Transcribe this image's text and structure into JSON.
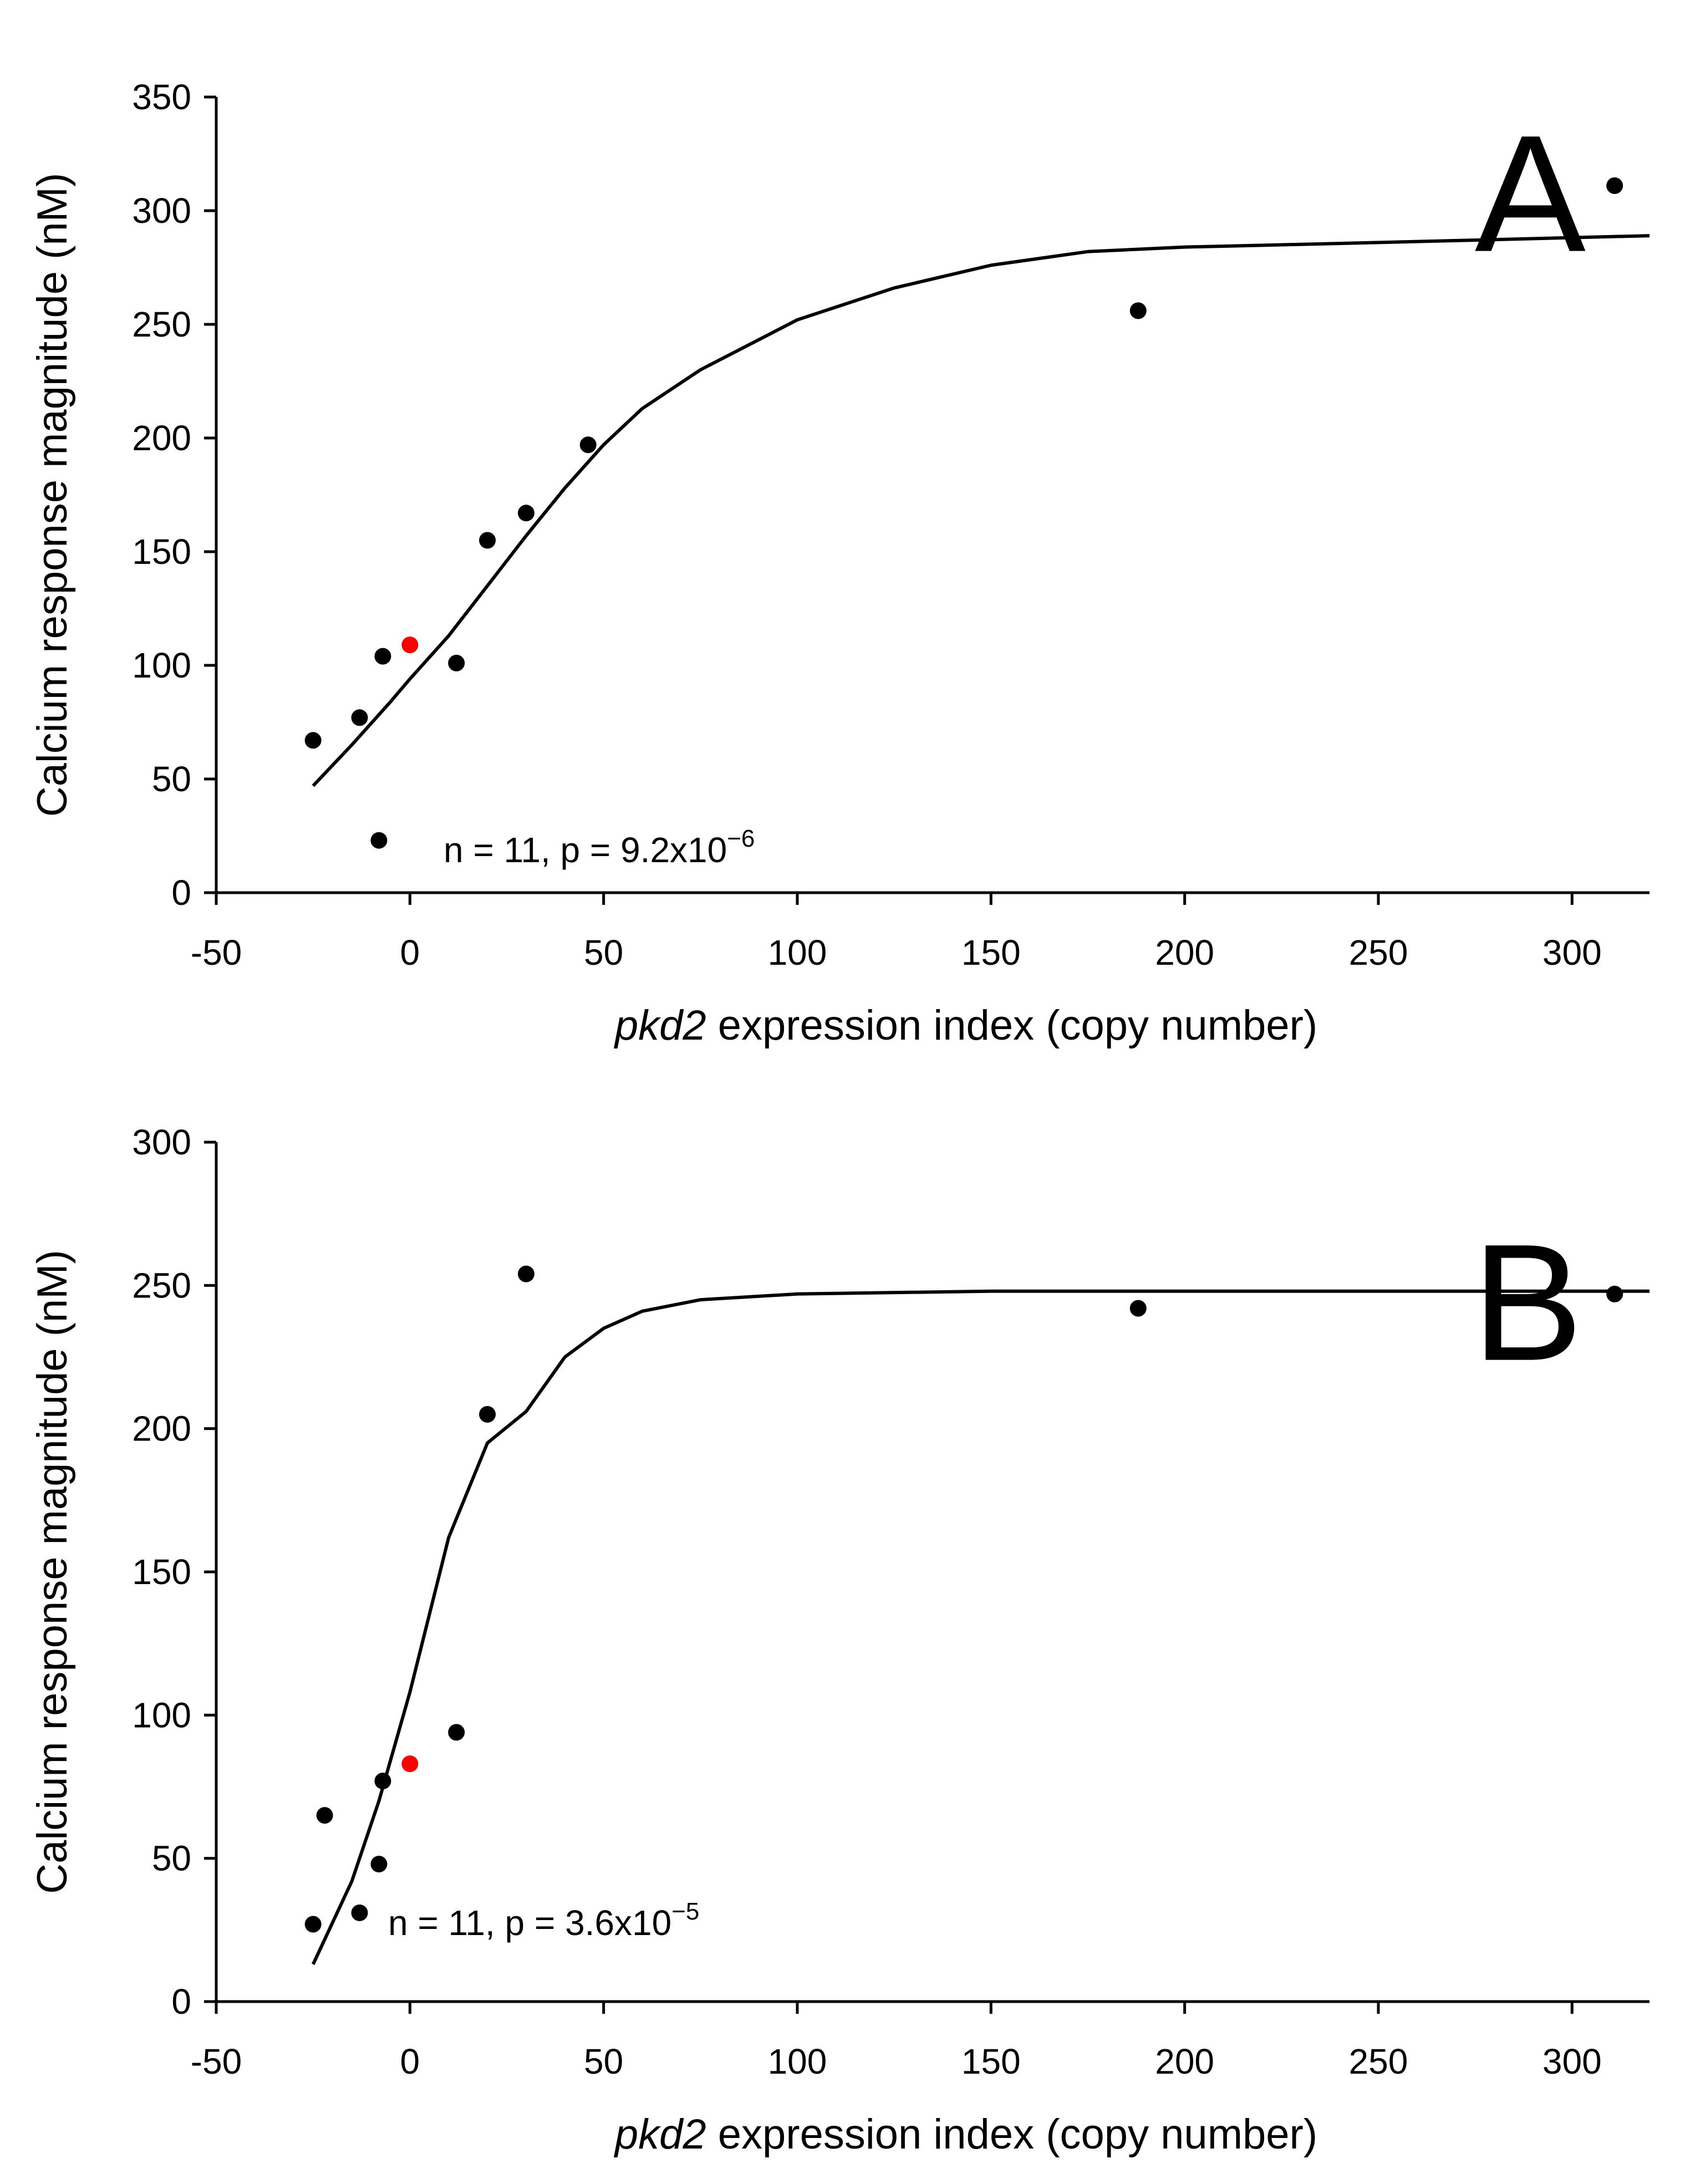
{
  "chart_data": [
    {
      "type": "scatter",
      "panel_label": "A",
      "ylabel": "Calcium response magnitude (nM)",
      "xlabel_italic": "pkd2",
      "xlabel_rest": " expression index (copy number)",
      "xlim": [
        -50,
        320
      ],
      "ylim": [
        0,
        350
      ],
      "xticks": [
        -50,
        0,
        50,
        100,
        150,
        200,
        250,
        300
      ],
      "yticks": [
        0,
        50,
        100,
        150,
        200,
        250,
        300,
        350
      ],
      "grid": false,
      "annotation": "n = 11, p = 9.2x10",
      "annotation_exp": "−6",
      "series": [
        {
          "name": "data",
          "color": "#000000",
          "x": [
            -25,
            -13,
            -7,
            -8,
            12,
            20,
            30,
            46,
            188,
            311
          ],
          "y": [
            67,
            77,
            104,
            23,
            101,
            155,
            167,
            197,
            256,
            311
          ]
        },
        {
          "name": "highlighted",
          "color": "#ff0000",
          "x": [
            0
          ],
          "y": [
            109
          ]
        },
        {
          "name": "fit",
          "type": "line",
          "color": "#000000",
          "x": [
            -25,
            -15,
            -5,
            0,
            10,
            20,
            30,
            40,
            50,
            60,
            75,
            100,
            125,
            150,
            175,
            200,
            250,
            320
          ],
          "y": [
            47,
            65,
            84,
            94,
            113,
            135,
            157,
            178,
            197,
            213,
            230,
            252,
            266,
            276,
            282,
            284,
            286,
            289
          ]
        }
      ]
    },
    {
      "type": "scatter",
      "panel_label": "B",
      "ylabel": "Calcium response magnitude (nM)",
      "xlabel_italic": "pkd2",
      "xlabel_rest": " expression index (copy number)",
      "xlim": [
        -50,
        320
      ],
      "ylim": [
        0,
        300
      ],
      "xticks": [
        -50,
        0,
        50,
        100,
        150,
        200,
        250,
        300
      ],
      "yticks": [
        0,
        50,
        100,
        150,
        200,
        250,
        300
      ],
      "grid": false,
      "annotation": "n = 11, p = 3.6x10",
      "annotation_exp": "−5",
      "series": [
        {
          "name": "data",
          "color": "#000000",
          "x": [
            -25,
            -22,
            -13,
            -8,
            -7,
            12,
            20,
            30,
            188,
            311
          ],
          "y": [
            27,
            65,
            31,
            48,
            77,
            94,
            205,
            254,
            242,
            247
          ],
          "note": ""
        },
        {
          "name": "highlighted",
          "color": "#ff0000",
          "x": [
            0
          ],
          "y": [
            83
          ]
        },
        {
          "name": "fit",
          "type": "line",
          "color": "#000000",
          "x": [
            -25,
            -15,
            -8,
            0,
            10,
            20,
            30,
            40,
            50,
            60,
            75,
            100,
            150,
            200,
            320
          ],
          "y": [
            13,
            42,
            70,
            108,
            162,
            195,
            206,
            225,
            235,
            241,
            245,
            247,
            248,
            248,
            248
          ]
        }
      ]
    }
  ]
}
